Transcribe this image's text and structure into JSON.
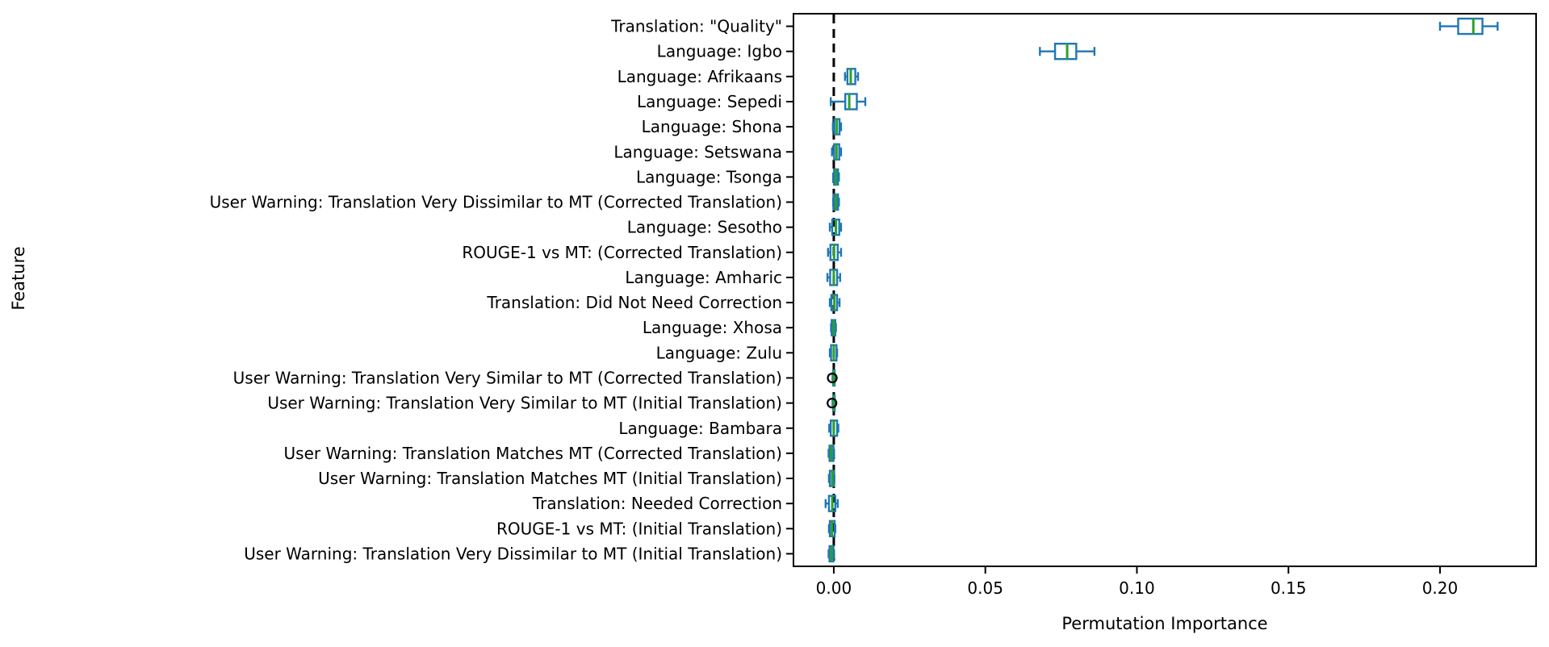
{
  "chart_data": {
    "type": "boxplot",
    "orientation": "horizontal",
    "title": "",
    "xlabel": "Permutation Importance",
    "ylabel": "Feature",
    "xlim": [
      -0.0133,
      0.2317
    ],
    "xticks": [
      0.0,
      0.05,
      0.1,
      0.15,
      0.2
    ],
    "xtick_labels": [
      "0.00",
      "0.05",
      "0.10",
      "0.15",
      "0.20"
    ],
    "grid": false,
    "legend": "none",
    "zero_line": {
      "x": 0.0,
      "style": "dashed",
      "color": "#000000"
    },
    "colors": {
      "box_edge": "#1f77b4",
      "whisker": "#1f77b4",
      "median": "#2ca02c",
      "flier": "#000000",
      "spine": "#000000"
    },
    "rows": [
      {
        "label": "Translation: \"Quality\"",
        "whislo": 0.2,
        "q1": 0.206,
        "med": 0.211,
        "q3": 0.214,
        "whishi": 0.219,
        "fliers": []
      },
      {
        "label": "Language: Igbo",
        "whislo": 0.068,
        "q1": 0.073,
        "med": 0.077,
        "q3": 0.08,
        "whishi": 0.086,
        "fliers": []
      },
      {
        "label": "Language: Afrikaans",
        "whislo": 0.0037,
        "q1": 0.0045,
        "med": 0.0056,
        "q3": 0.0071,
        "whishi": 0.008,
        "fliers": []
      },
      {
        "label": "Language: Sepedi",
        "whislo": -0.001,
        "q1": 0.0038,
        "med": 0.0051,
        "q3": 0.0076,
        "whishi": 0.0104,
        "fliers": []
      },
      {
        "label": "Language: Shona",
        "whislo": -0.0003,
        "q1": 0.0002,
        "med": 0.001,
        "q3": 0.0019,
        "whishi": 0.0024,
        "fliers": []
      },
      {
        "label": "Language: Setswana",
        "whislo": -0.0006,
        "q1": 0.0001,
        "med": 0.0009,
        "q3": 0.0018,
        "whishi": 0.0024,
        "fliers": []
      },
      {
        "label": "Language: Tsonga",
        "whislo": -0.0002,
        "q1": 0.0001,
        "med": 0.0007,
        "q3": 0.0014,
        "whishi": 0.0017,
        "fliers": []
      },
      {
        "label": "User Warning: Translation Very Dissimilar to MT (Corrected Translation)",
        "whislo": -0.0002,
        "q1": 0.0,
        "med": 0.0007,
        "q3": 0.0014,
        "whishi": 0.0017,
        "fliers": []
      },
      {
        "label": "Language: Sesotho",
        "whislo": -0.0013,
        "q1": -0.0005,
        "med": 0.0007,
        "q3": 0.0018,
        "whishi": 0.0024,
        "fliers": []
      },
      {
        "label": "ROUGE-1 vs MT: (Corrected Translation)",
        "whislo": -0.0019,
        "q1": -0.0011,
        "med": 0.0001,
        "q3": 0.0013,
        "whishi": 0.0024,
        "fliers": []
      },
      {
        "label": "Language: Amharic",
        "whislo": -0.0021,
        "q1": -0.0012,
        "med": 0.0,
        "q3": 0.0011,
        "whishi": 0.0021,
        "fliers": []
      },
      {
        "label": "Translation: Did Not Need Correction",
        "whislo": -0.0013,
        "q1": -0.0008,
        "med": 0.0002,
        "q3": 0.0011,
        "whishi": 0.0019,
        "fliers": []
      },
      {
        "label": "Language: Xhosa",
        "whislo": -0.0009,
        "q1": -0.0007,
        "med": 0.0,
        "q3": 0.0005,
        "whishi": 0.0007,
        "fliers": []
      },
      {
        "label": "Language: Zulu",
        "whislo": -0.0013,
        "q1": -0.0009,
        "med": 0.0,
        "q3": 0.0009,
        "whishi": 0.0011,
        "fliers": []
      },
      {
        "label": "User Warning: Translation Very Similar to MT (Corrected Translation)",
        "whislo": -0.0004,
        "q1": -0.0002,
        "med": 0.0,
        "q3": 0.0003,
        "whishi": 0.0004,
        "fliers": [
          -0.0005
        ]
      },
      {
        "label": "User Warning: Translation Very Similar to MT (Initial Translation)",
        "whislo": -0.0004,
        "q1": -0.0002,
        "med": 0.0,
        "q3": 0.0003,
        "whishi": 0.0004,
        "fliers": [
          -0.0006
        ]
      },
      {
        "label": "Language: Bambara",
        "whislo": -0.0015,
        "q1": -0.001,
        "med": 0.0,
        "q3": 0.0011,
        "whishi": 0.0015,
        "fliers": []
      },
      {
        "label": "User Warning: Translation Matches MT (Corrected Translation)",
        "whislo": -0.0017,
        "q1": -0.0014,
        "med": -0.0008,
        "q3": -0.0001,
        "whishi": 0.0001,
        "fliers": []
      },
      {
        "label": "User Warning: Translation Matches MT (Initial Translation)",
        "whislo": -0.0016,
        "q1": -0.0013,
        "med": -0.0005,
        "q3": 0.0,
        "whishi": 0.0002,
        "fliers": []
      },
      {
        "label": "Translation: Needed Correction",
        "whislo": -0.0027,
        "q1": -0.0016,
        "med": -0.0005,
        "q3": 0.0005,
        "whishi": 0.0013,
        "fliers": []
      },
      {
        "label": "ROUGE-1 vs MT: (Initial Translation)",
        "whislo": -0.0016,
        "q1": -0.0013,
        "med": -0.0006,
        "q3": 0.0003,
        "whishi": 0.0005,
        "fliers": []
      },
      {
        "label": "User Warning: Translation Very Dissimilar to MT (Initial Translation)",
        "whislo": -0.0017,
        "q1": -0.0014,
        "med": -0.0007,
        "q3": -0.0001,
        "whishi": 0.0001,
        "fliers": []
      }
    ]
  }
}
